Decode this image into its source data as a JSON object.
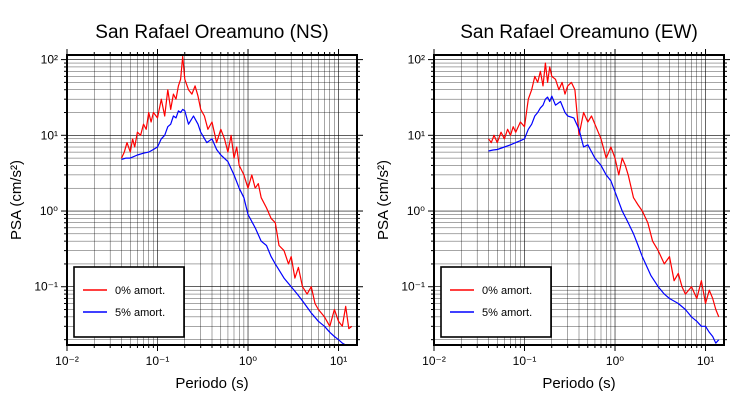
{
  "chart_data": [
    {
      "type": "line",
      "title": "San Rafael Oreamuno (NS)",
      "xlabel": "Periodo (s)",
      "ylabel": "PSA (cm/s²)",
      "xscale": "log",
      "yscale": "log",
      "xlim": [
        0.01,
        16
      ],
      "ylim": [
        0.017,
        115
      ],
      "grid": true,
      "legend_position": "lower-left",
      "x_ticks": [
        "10⁻²",
        "10⁻¹",
        "10⁰",
        "10¹"
      ],
      "y_ticks": [
        "10⁻¹",
        "10⁰",
        "10¹",
        "10²"
      ],
      "series": [
        {
          "name": "0% amort.",
          "color": "#ff0000",
          "x": [
            0.04,
            0.043,
            0.046,
            0.05,
            0.053,
            0.056,
            0.06,
            0.065,
            0.07,
            0.075,
            0.08,
            0.085,
            0.09,
            0.1,
            0.11,
            0.12,
            0.13,
            0.14,
            0.15,
            0.16,
            0.17,
            0.18,
            0.19,
            0.2,
            0.22,
            0.24,
            0.26,
            0.28,
            0.3,
            0.33,
            0.36,
            0.4,
            0.45,
            0.5,
            0.55,
            0.6,
            0.65,
            0.7,
            0.75,
            0.8,
            0.9,
            1.0,
            1.1,
            1.2,
            1.3,
            1.4,
            1.6,
            1.8,
            2.0,
            2.2,
            2.5,
            2.8,
            3.0,
            3.3,
            3.6,
            4.0,
            4.5,
            5.0,
            5.5,
            6.0,
            7.0,
            8.0,
            9.0,
            10.0,
            11.0,
            12.0,
            13.0,
            14.0
          ],
          "values": [
            5,
            6,
            8,
            6,
            9,
            7,
            11,
            10,
            14,
            12,
            20,
            15,
            20,
            17,
            30,
            18,
            40,
            22,
            35,
            30,
            45,
            55,
            110,
            55,
            40,
            35,
            45,
            33,
            22,
            18,
            12,
            15,
            8,
            12,
            9,
            6,
            10,
            5,
            7,
            4,
            3,
            2,
            3,
            2,
            2.3,
            1.5,
            1.1,
            0.8,
            0.7,
            0.35,
            0.3,
            0.2,
            0.25,
            0.13,
            0.18,
            0.1,
            0.08,
            0.1,
            0.06,
            0.05,
            0.04,
            0.03,
            0.05,
            0.035,
            0.03,
            0.055,
            0.028,
            0.03
          ]
        },
        {
          "name": "5% amort.",
          "color": "#0000ff",
          "x": [
            0.04,
            0.045,
            0.05,
            0.06,
            0.07,
            0.08,
            0.09,
            0.1,
            0.11,
            0.12,
            0.13,
            0.14,
            0.15,
            0.16,
            0.17,
            0.18,
            0.19,
            0.2,
            0.22,
            0.25,
            0.28,
            0.3,
            0.35,
            0.4,
            0.45,
            0.5,
            0.6,
            0.7,
            0.8,
            0.9,
            1.0,
            1.2,
            1.4,
            1.6,
            1.8,
            2.0,
            2.5,
            3.0,
            3.5,
            4.0,
            5.0,
            6.0,
            7.0,
            8.0,
            9.0,
            10.0,
            11.0,
            12.0,
            13.0
          ],
          "values": [
            4.8,
            5,
            5,
            5.5,
            5.8,
            6,
            6.5,
            7,
            9,
            10,
            13,
            14,
            18,
            17,
            21,
            20,
            22,
            21,
            14,
            18,
            14,
            11,
            8,
            9,
            6.5,
            5.5,
            4.5,
            3,
            2,
            1.5,
            0.9,
            0.6,
            0.4,
            0.35,
            0.25,
            0.2,
            0.13,
            0.1,
            0.08,
            0.065,
            0.045,
            0.035,
            0.03,
            0.025,
            0.022,
            0.02,
            0.018,
            0.017,
            0.017
          ]
        }
      ]
    },
    {
      "type": "line",
      "title": "San Rafael Oreamuno (EW)",
      "xlabel": "Periodo (s)",
      "ylabel": "PSA (cm/s²)",
      "xscale": "log",
      "yscale": "log",
      "xlim": [
        0.01,
        16
      ],
      "ylim": [
        0.017,
        115
      ],
      "grid": true,
      "legend_position": "lower-left",
      "x_ticks": [
        "10⁻²",
        "10⁻¹",
        "10⁰",
        "10¹"
      ],
      "y_ticks": [
        "10⁻¹",
        "10⁰",
        "10¹",
        "10²"
      ],
      "series": [
        {
          "name": "0% amort.",
          "color": "#ff0000",
          "x": [
            0.04,
            0.043,
            0.046,
            0.05,
            0.055,
            0.06,
            0.065,
            0.07,
            0.075,
            0.08,
            0.09,
            0.1,
            0.11,
            0.12,
            0.13,
            0.14,
            0.15,
            0.16,
            0.17,
            0.18,
            0.19,
            0.2,
            0.22,
            0.24,
            0.26,
            0.28,
            0.3,
            0.33,
            0.36,
            0.4,
            0.45,
            0.5,
            0.55,
            0.6,
            0.7,
            0.8,
            0.9,
            1.0,
            1.1,
            1.2,
            1.3,
            1.4,
            1.6,
            1.8,
            2.0,
            2.3,
            2.6,
            3.0,
            3.5,
            4.0,
            4.5,
            5.0,
            5.5,
            6.0,
            7.0,
            8.0,
            9.0,
            10.0,
            11.0,
            12.0,
            13.0,
            14.0
          ],
          "values": [
            9,
            8,
            10,
            8,
            11,
            9,
            12,
            10,
            13,
            11,
            15,
            13,
            30,
            40,
            60,
            50,
            70,
            45,
            90,
            50,
            80,
            60,
            55,
            40,
            50,
            35,
            45,
            50,
            40,
            10,
            20,
            15,
            18,
            14,
            9,
            5,
            7,
            5,
            3,
            5,
            4,
            3,
            1.5,
            1.2,
            1.0,
            0.7,
            0.4,
            0.3,
            0.2,
            0.25,
            0.12,
            0.15,
            0.1,
            0.08,
            0.1,
            0.07,
            0.12,
            0.06,
            0.09,
            0.07,
            0.05,
            0.04
          ]
        },
        {
          "name": "5% amort.",
          "color": "#0000ff",
          "x": [
            0.04,
            0.045,
            0.05,
            0.06,
            0.07,
            0.08,
            0.09,
            0.1,
            0.11,
            0.12,
            0.13,
            0.14,
            0.15,
            0.16,
            0.17,
            0.18,
            0.19,
            0.2,
            0.22,
            0.25,
            0.28,
            0.3,
            0.35,
            0.4,
            0.45,
            0.5,
            0.6,
            0.7,
            0.8,
            0.9,
            1.0,
            1.2,
            1.4,
            1.6,
            1.8,
            2.0,
            2.5,
            3.0,
            3.5,
            4.0,
            5.0,
            6.0,
            7.0,
            8.0,
            9.0,
            10.0,
            11.0,
            12.0,
            13.0,
            14.0
          ],
          "values": [
            6.2,
            6.4,
            6.5,
            7,
            7.5,
            8,
            8.5,
            9,
            12,
            14,
            18,
            20,
            23,
            25,
            30,
            32,
            28,
            33,
            25,
            28,
            20,
            18,
            17,
            12,
            7,
            7.5,
            5,
            4,
            3,
            2.5,
            1.8,
            1.0,
            0.7,
            0.5,
            0.35,
            0.25,
            0.14,
            0.1,
            0.08,
            0.07,
            0.06,
            0.05,
            0.04,
            0.035,
            0.03,
            0.03,
            0.025,
            0.022,
            0.018,
            0.02
          ]
        }
      ]
    }
  ]
}
